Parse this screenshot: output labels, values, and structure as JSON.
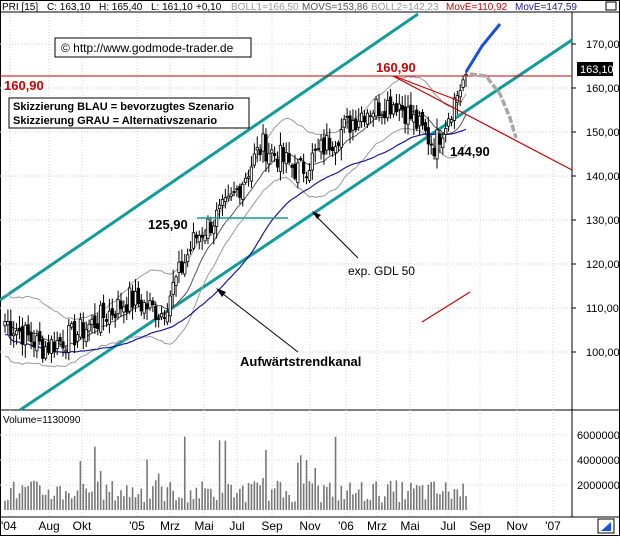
{
  "header": {
    "name": "PRI [15]",
    "close": "C: 163,10",
    "high": "H: 165,40",
    "low": "L: 161,10",
    "change": "+0,10",
    "boll1": "BOLL1=166,50",
    "movs": "MOVS=153,86",
    "boll2": "BOLL2=142,23",
    "move1": "MovE=110,92",
    "move2": "MovE=147,59"
  },
  "watermark": "© http://www.godmode-trader.de",
  "legend": {
    "line1": "Skizzierung BLAU = bevorzugtes Szenario",
    "line2": "Skizzierung GRAU = Alternativszenario"
  },
  "annotations": {
    "resistance_left": "160,90",
    "resistance_top": "160,90",
    "level_125": "125,90",
    "level_144": "144,90",
    "gdl_label": "exp. GDL 50",
    "trend_label": "Aufwärtstrendkanal"
  },
  "price_tag": "163,10",
  "volume_label": "Volume=1130090",
  "colors": {
    "channel": "#129b9b",
    "candle": "#000000",
    "boll": "#999999",
    "movs": "#555555",
    "mov_e": "#1a1aa0",
    "resistance": "#cc0000",
    "blue_scenario": "#1a4ee0",
    "gray_scenario": "#a8a8a8",
    "volume": "#777777"
  },
  "chart_data": {
    "type": "candlestick",
    "x_axis": {
      "labels": [
        "'04",
        "Aug",
        "Okt",
        "'05",
        "Mrz",
        "Mai",
        "Jul",
        "Sep",
        "Nov",
        "'06",
        "Mrz",
        "Mai",
        "Jul",
        "Sep",
        "Nov",
        "'07"
      ]
    },
    "y_axis": {
      "range": [
        90,
        175
      ],
      "ticks": [
        100,
        110,
        120,
        130,
        140,
        150,
        160,
        170
      ]
    },
    "volume_axis": {
      "range": [
        0,
        7000000
      ],
      "ticks": [
        2000000,
        4000000,
        6000000
      ],
      "labels": [
        "2000000",
        "4000000",
        "6000000"
      ]
    },
    "anchors": [
      {
        "label": "'04",
        "price": 107
      },
      {
        "label": "Aug",
        "price": 101
      },
      {
        "label": "Okt",
        "price": 104
      },
      {
        "label": "'05",
        "price": 112
      },
      {
        "label": "Mrz",
        "price": 109
      },
      {
        "label": "Mai",
        "price": 126
      },
      {
        "label": "Jul",
        "price": 133
      },
      {
        "label": "Sep",
        "price": 147
      },
      {
        "label": "Nov",
        "price": 141
      },
      {
        "label": "'06",
        "price": 149
      },
      {
        "label": "Mrz",
        "price": 155
      },
      {
        "label": "Mai",
        "price": 157
      },
      {
        "label": "Jul",
        "price": 147
      },
      {
        "label": "Sep",
        "price": 163.1
      }
    ],
    "levels": [
      {
        "label": "160,90",
        "value": 160.9
      },
      {
        "label": "125,90",
        "value": 125.9
      },
      {
        "label": "144,90",
        "value": 144.9
      }
    ],
    "indicators": [
      {
        "name": "BOLL1",
        "value": 166.5
      },
      {
        "name": "MOVS",
        "value": 153.86
      },
      {
        "name": "BOLL2",
        "value": 142.23
      },
      {
        "name": "MovE",
        "value": 110.92
      },
      {
        "name": "MovE",
        "value": 147.59
      }
    ],
    "last": {
      "close": 163.1,
      "high": 165.4,
      "low": 161.1
    },
    "volume_last": 1130090
  }
}
